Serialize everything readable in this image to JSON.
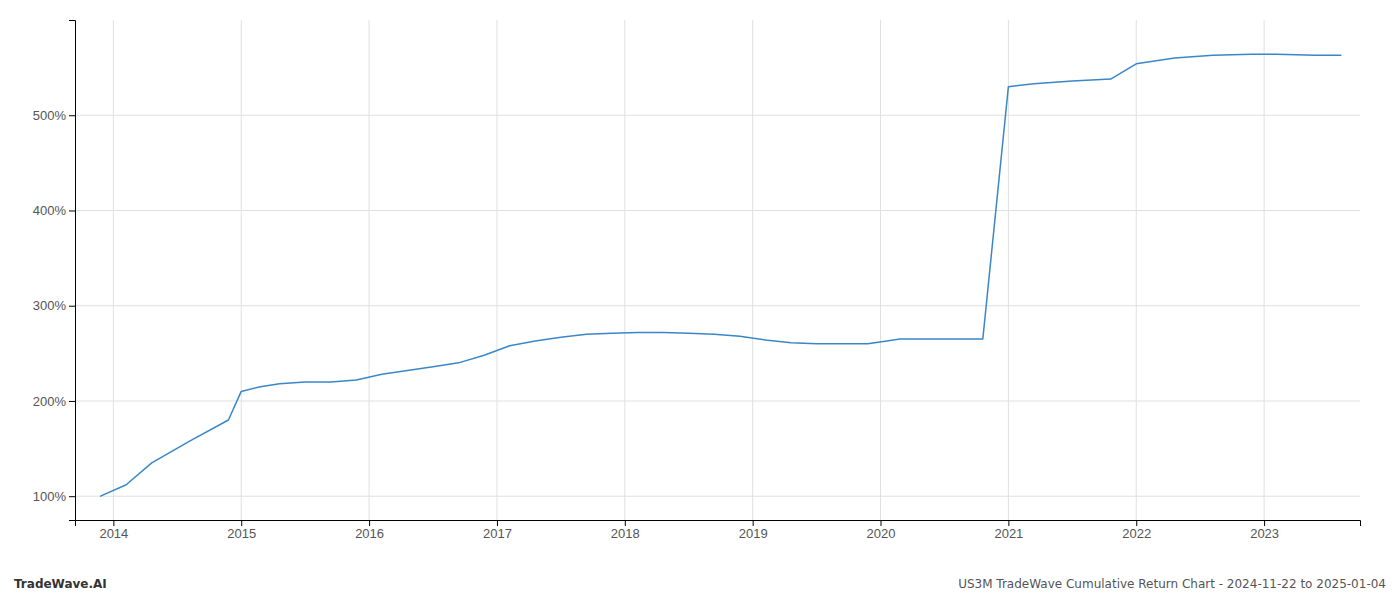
{
  "chart_data": {
    "type": "line",
    "x": [
      2013.9,
      2014.1,
      2014.3,
      2014.6,
      2014.9,
      2015.0,
      2015.15,
      2015.3,
      2015.5,
      2015.7,
      2015.9,
      2016.1,
      2016.3,
      2016.5,
      2016.7,
      2016.9,
      2017.1,
      2017.3,
      2017.5,
      2017.7,
      2017.9,
      2018.1,
      2018.3,
      2018.5,
      2018.7,
      2018.9,
      2019.1,
      2019.3,
      2019.5,
      2019.7,
      2019.9,
      2020.05,
      2020.15,
      2020.25,
      2020.4,
      2020.6,
      2020.8,
      2021.0,
      2021.2,
      2021.5,
      2021.8,
      2022.0,
      2022.3,
      2022.6,
      2022.9,
      2023.1,
      2023.4,
      2023.6
    ],
    "values": [
      100,
      112,
      135,
      158,
      180,
      210,
      215,
      218,
      220,
      220,
      222,
      228,
      232,
      236,
      240,
      248,
      258,
      263,
      267,
      270,
      271,
      272,
      272,
      271,
      270,
      268,
      264,
      261,
      260,
      260,
      260,
      263,
      265,
      265,
      265,
      265,
      265,
      530,
      533,
      536,
      538,
      554,
      560,
      563,
      564,
      564,
      563,
      563
    ],
    "color": "#3a87c8",
    "xlim": [
      2013.7,
      2023.75
    ],
    "xticks": [
      2014,
      2015,
      2016,
      2017,
      2018,
      2019,
      2020,
      2021,
      2022,
      2023
    ],
    "ylim": [
      75,
      600
    ],
    "yticks": [
      {
        "value": 100,
        "label": "100%"
      },
      {
        "value": 200,
        "label": "200%"
      },
      {
        "value": 300,
        "label": "300%"
      },
      {
        "value": 400,
        "label": "400%"
      },
      {
        "value": 500,
        "label": "500%"
      }
    ],
    "grid": true,
    "annotations": [
      "TradeWave.AI",
      "US3M TradeWave Cumulative Return Chart - 2024-11-22 to 2025-01-04"
    ]
  }
}
